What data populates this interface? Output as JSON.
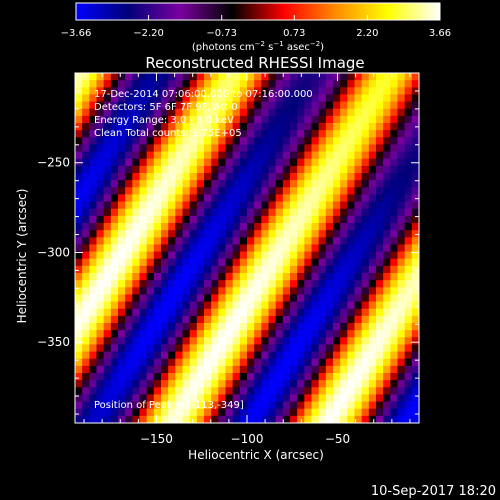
{
  "chart_data": {
    "type": "heatmap",
    "title": "Reconstructed RHESSI Image",
    "xlabel": "Heliocentric X (arcsec)",
    "ylabel": "Heliocentric Y (arcsec)",
    "xlim": [
      -195,
      -5
    ],
    "ylim": [
      -395,
      -200
    ],
    "xticks": [
      -150,
      -100,
      -50
    ],
    "yticks": [
      -250,
      -300,
      -350
    ],
    "xtick_labels": [
      "−150",
      "−100",
      "−50"
    ],
    "ytick_labels": [
      "−250",
      "−300",
      "−350"
    ],
    "colorbar": {
      "min": -3.66,
      "max": 3.66,
      "ticks": [
        -3.66,
        -2.2,
        -0.73,
        0.73,
        2.2,
        3.66
      ],
      "tick_labels": [
        "−3.66",
        "−2.20",
        "−0.73",
        "0.73",
        "2.20",
        "3.66"
      ],
      "unit_prefix": "(photons cm",
      "unit_exp1": "−2",
      "unit_mid": " s",
      "unit_exp2": "−1",
      "unit_mid2": " asec",
      "unit_exp3": "−2",
      "unit_suffix": ")"
    },
    "colors": [
      "#0000ff",
      "#00007a",
      "#7a00a0",
      "#000000",
      "#ff0000",
      "#ff8c00",
      "#ffff00",
      "#ffffff"
    ],
    "fringe": {
      "direction_x_per_y": 0.62,
      "period_arcsec": 86,
      "peak_x": -113,
      "peak_y": -349,
      "peak_value": 3.66
    },
    "annotations": [
      "17-Dec-2014 07:06:00.000 to 07:16:00.000",
      "Detectors: 5F 6F 7F 9F, Att 0",
      "Energy Range: 3.0 - 6.0 keV",
      "Clean   Total counts: 1.75E+05"
    ],
    "peak_label": "Position of Peak = [-113,-349]",
    "timestamp": "10-Sep-2017 18:20"
  }
}
